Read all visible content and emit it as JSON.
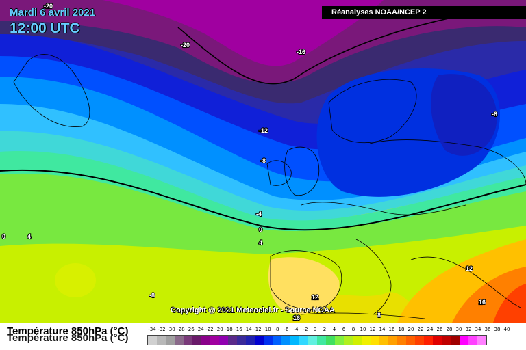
{
  "header": {
    "date": "Mardi 6 avril 2021",
    "time": "12:00 UTC",
    "source": "Réanalyses NOAA/NCEP 2",
    "copyright": "Copyright @ 2021 Meteociel.fr - Source NOAA"
  },
  "footer": {
    "title": "Température 850hPa (°C)"
  },
  "isotherm_labels": {
    "a": "-20",
    "b": "-20",
    "c": "-16",
    "d": "-12",
    "e": "-8",
    "f": "-8",
    "g": "-4",
    "h": "0",
    "i": "4",
    "j": "0",
    "k": "4",
    "l": "-8",
    "m": "12",
    "n": "16",
    "o": "12",
    "p": "16",
    "q": "8"
  },
  "legend": {
    "labels": [
      "-34",
      "-32",
      "-30",
      "-28",
      "-26",
      "-24",
      "-22",
      "-20",
      "-18",
      "-16",
      "-14",
      "-12",
      "-10",
      "-8",
      "-6",
      "-4",
      "-2",
      "0",
      "2",
      "4",
      "6",
      "8",
      "10",
      "12",
      "14",
      "16",
      "18",
      "20",
      "22",
      "24",
      "26",
      "28",
      "30",
      "32",
      "34",
      "36",
      "38",
      "40"
    ],
    "colors": [
      "#d0d0d0",
      "#b8b8b8",
      "#a0a0a0",
      "#8a6a8a",
      "#7a3a7a",
      "#6a1a6a",
      "#8a008a",
      "#a000a0",
      "#9000b0",
      "#5a2a8a",
      "#3a2a9a",
      "#2020b0",
      "#0000d0",
      "#0030f0",
      "#0060ff",
      "#0090ff",
      "#00b8ff",
      "#30d8ff",
      "#60f0e0",
      "#40e8a0",
      "#40e060",
      "#80f040",
      "#b0f020",
      "#d0f000",
      "#f0f000",
      "#ffe000",
      "#ffc000",
      "#ffa000",
      "#ff8000",
      "#ff6000",
      "#ff4000",
      "#ff2000",
      "#e00000",
      "#c00000",
      "#a00000",
      "#ff00ff",
      "#ff40ff",
      "#ff80ff"
    ]
  }
}
